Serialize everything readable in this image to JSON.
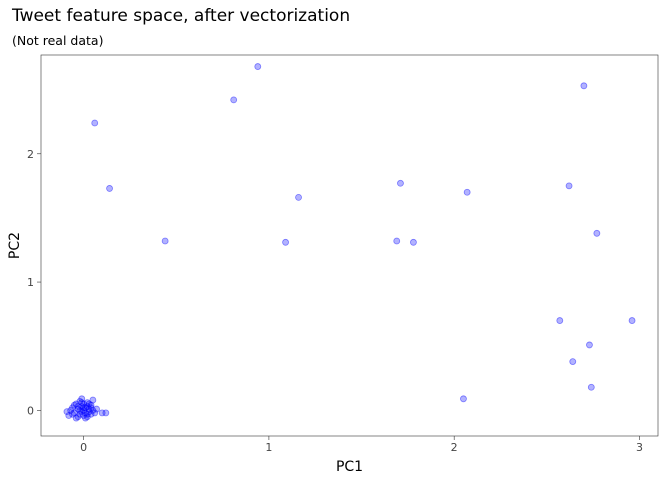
{
  "chart_data": {
    "type": "scatter",
    "title": "Tweet feature space, after vectorization",
    "subtitle": "(Not real data)",
    "xlabel": "PC1",
    "ylabel": "PC2",
    "xlim": [
      -0.23,
      3.1
    ],
    "ylim": [
      -0.2,
      2.77
    ],
    "xticks": [
      0,
      1,
      2,
      3
    ],
    "yticks": [
      0,
      1,
      2
    ],
    "grid": false,
    "point_color": "#0000ff",
    "points": [
      {
        "x": 0.94,
        "y": 2.68
      },
      {
        "x": 0.81,
        "y": 2.42
      },
      {
        "x": 0.06,
        "y": 2.24
      },
      {
        "x": 2.7,
        "y": 2.53
      },
      {
        "x": 0.14,
        "y": 1.73
      },
      {
        "x": 1.16,
        "y": 1.66
      },
      {
        "x": 1.71,
        "y": 1.77
      },
      {
        "x": 2.07,
        "y": 1.7
      },
      {
        "x": 2.62,
        "y": 1.75
      },
      {
        "x": 0.44,
        "y": 1.32
      },
      {
        "x": 1.09,
        "y": 1.31
      },
      {
        "x": 1.69,
        "y": 1.32
      },
      {
        "x": 1.78,
        "y": 1.31
      },
      {
        "x": 2.77,
        "y": 1.38
      },
      {
        "x": 2.57,
        "y": 0.7
      },
      {
        "x": 2.96,
        "y": 0.7
      },
      {
        "x": 2.73,
        "y": 0.51
      },
      {
        "x": 2.64,
        "y": 0.38
      },
      {
        "x": 2.74,
        "y": 0.18
      },
      {
        "x": 2.05,
        "y": 0.09
      },
      {
        "x": -0.08,
        "y": -0.04
      },
      {
        "x": -0.06,
        "y": 0.02
      },
      {
        "x": -0.05,
        "y": -0.02
      },
      {
        "x": -0.04,
        "y": 0.05
      },
      {
        "x": -0.03,
        "y": -0.05
      },
      {
        "x": -0.03,
        "y": 0.01
      },
      {
        "x": -0.02,
        "y": 0.07
      },
      {
        "x": -0.02,
        "y": -0.03
      },
      {
        "x": -0.01,
        "y": 0.03
      },
      {
        "x": -0.01,
        "y": -0.01
      },
      {
        "x": 0.0,
        "y": 0.05
      },
      {
        "x": 0.0,
        "y": -0.04
      },
      {
        "x": 0.0,
        "y": 0.0
      },
      {
        "x": 0.01,
        "y": 0.02
      },
      {
        "x": 0.01,
        "y": -0.02
      },
      {
        "x": 0.02,
        "y": 0.06
      },
      {
        "x": 0.02,
        "y": -0.05
      },
      {
        "x": 0.03,
        "y": 0.01
      },
      {
        "x": 0.03,
        "y": -0.01
      },
      {
        "x": 0.04,
        "y": 0.04
      },
      {
        "x": 0.04,
        "y": -0.03
      },
      {
        "x": 0.05,
        "y": 0.08
      },
      {
        "x": 0.05,
        "y": 0.0
      },
      {
        "x": 0.06,
        "y": -0.02
      },
      {
        "x": -0.07,
        "y": 0.0
      },
      {
        "x": -0.05,
        "y": 0.04
      },
      {
        "x": -0.04,
        "y": -0.06
      },
      {
        "x": -0.01,
        "y": 0.09
      },
      {
        "x": 0.02,
        "y": 0.03
      },
      {
        "x": 0.01,
        "y": -0.06
      },
      {
        "x": -0.02,
        "y": 0.0
      },
      {
        "x": 0.03,
        "y": 0.05
      },
      {
        "x": -0.06,
        "y": -0.03
      },
      {
        "x": 0.07,
        "y": 0.01
      },
      {
        "x": -0.03,
        "y": 0.03
      },
      {
        "x": 0.0,
        "y": 0.02
      },
      {
        "x": 0.1,
        "y": -0.02
      },
      {
        "x": 0.12,
        "y": -0.02
      },
      {
        "x": -0.09,
        "y": -0.01
      },
      {
        "x": 0.04,
        "y": 0.02
      },
      {
        "x": -0.01,
        "y": 0.06
      },
      {
        "x": 0.02,
        "y": -0.03
      }
    ]
  }
}
